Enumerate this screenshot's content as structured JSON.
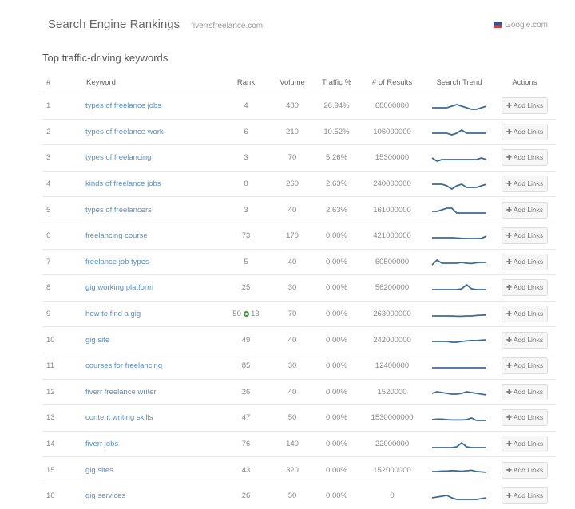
{
  "header": {
    "title": "Search Engine Rankings",
    "domain": "fiverrsfreelance.com",
    "engine": "Google.com",
    "engine_icon": "us-flag-icon"
  },
  "subtitle": "Top traffic-driving keywords",
  "columns": [
    "#",
    "Keyword",
    "Rank",
    "Volume",
    "Traffic %",
    "# of Results",
    "Search Trend",
    "Actions"
  ],
  "action_label": "Add Links",
  "trend_color": "#3d6b99",
  "rows": [
    {
      "n": "1",
      "keyword": "types of freelance jobs",
      "rank": "4",
      "volume": "480",
      "traffic": "26.94%",
      "results": "68000000",
      "trend": [
        5,
        5,
        5,
        5,
        6,
        7,
        6,
        5,
        4,
        4,
        5,
        6
      ]
    },
    {
      "n": "2",
      "keyword": "types of freelance work",
      "rank": "6",
      "volume": "210",
      "traffic": "10.52%",
      "results": "106000000",
      "trend": [
        5,
        5,
        5,
        5,
        4,
        5,
        7,
        5,
        5,
        5,
        5,
        5
      ]
    },
    {
      "n": "3",
      "keyword": "types of freelancing",
      "rank": "3",
      "volume": "70",
      "traffic": "5.26%",
      "results": "15300000",
      "trend": [
        6,
        4,
        5,
        5,
        5,
        5,
        5,
        5,
        5,
        5,
        6,
        5
      ]
    },
    {
      "n": "4",
      "keyword": "kinds of freelance jobs",
      "rank": "8",
      "volume": "260",
      "traffic": "2.63%",
      "results": "240000000",
      "trend": [
        6,
        6,
        6,
        5,
        3,
        5,
        6,
        4,
        4,
        4,
        5,
        6
      ]
    },
    {
      "n": "5",
      "keyword": "types of freelancers",
      "rank": "3",
      "volume": "40",
      "traffic": "2.63%",
      "results": "161000000",
      "trend": [
        5,
        5,
        6,
        7,
        7,
        4,
        4,
        4,
        4,
        4,
        4,
        4
      ]
    },
    {
      "n": "6",
      "keyword": "freelancing course",
      "rank": "73",
      "volume": "170",
      "traffic": "0.00%",
      "results": "421000000",
      "trend": [
        5,
        5,
        5,
        5,
        5,
        4.8,
        4.6,
        4.5,
        4.5,
        4.5,
        4.6,
        6
      ]
    },
    {
      "n": "7",
      "keyword": "freelance job types",
      "rank": "5",
      "volume": "40",
      "traffic": "0.00%",
      "results": "60500000",
      "trend": [
        4,
        7,
        5,
        5,
        5,
        5,
        5.5,
        5,
        4.8,
        5.3,
        5.5,
        5.5
      ]
    },
    {
      "n": "8",
      "keyword": "gig working platform",
      "rank": "25",
      "volume": "30",
      "traffic": "0.00%",
      "results": "56200000",
      "trend": [
        5,
        5,
        5,
        5,
        5,
        5,
        5.5,
        8,
        5.5,
        5,
        5,
        5
      ]
    },
    {
      "n": "9",
      "keyword": "how to find a gig",
      "rank": "50",
      "rank_change": "13",
      "volume": "70",
      "traffic": "0.00%",
      "results": "263000000",
      "trend": [
        5,
        5,
        5,
        5,
        5,
        4.8,
        4.8,
        5,
        5,
        5.3,
        5.5,
        5.6
      ]
    },
    {
      "n": "10",
      "keyword": "gig site",
      "rank": "49",
      "volume": "40",
      "traffic": "0.00%",
      "results": "242000000",
      "trend": [
        5,
        5,
        5,
        5,
        4.5,
        4.5,
        5,
        5.3,
        5.6,
        5.5,
        5.8,
        6
      ]
    },
    {
      "n": "11",
      "keyword": "courses for freelancing",
      "rank": "85",
      "volume": "30",
      "traffic": "0.00%",
      "results": "12400000",
      "trend": [
        5,
        5,
        5,
        5,
        5,
        5,
        5,
        5,
        5,
        5,
        5,
        5
      ]
    },
    {
      "n": "12",
      "keyword": "fiverr freelance writer",
      "rank": "26",
      "volume": "40",
      "traffic": "0.00%",
      "results": "1520000",
      "trend": [
        5,
        6,
        5.5,
        5,
        4.5,
        4.5,
        5,
        6,
        5.5,
        5,
        4.5,
        4
      ]
    },
    {
      "n": "13",
      "keyword": "content writing skills",
      "rank": "47",
      "volume": "50",
      "traffic": "0.00%",
      "results": "1530000000",
      "trend": [
        5,
        5.3,
        5.3,
        5,
        4.8,
        4.8,
        4.8,
        5,
        6,
        4.5,
        4.5,
        4.5
      ]
    },
    {
      "n": "14",
      "keyword": "fiverr jobs",
      "rank": "76",
      "volume": "140",
      "traffic": "0.00%",
      "results": "22000000",
      "trend": [
        4,
        4,
        4,
        4,
        4,
        4.5,
        7,
        4.5,
        4,
        4,
        4,
        4
      ]
    },
    {
      "n": "15",
      "keyword": "gig sites",
      "rank": "43",
      "volume": "320",
      "traffic": "0.00%",
      "results": "152000000",
      "trend": [
        5,
        5,
        5.3,
        5.3,
        5.6,
        5.4,
        5.2,
        5.5,
        5.8,
        5,
        4.8,
        4.5
      ]
    },
    {
      "n": "16",
      "keyword": "gig services",
      "rank": "26",
      "volume": "50",
      "traffic": "0.00%",
      "results": "0",
      "trend": [
        5,
        5.5,
        6,
        6.5,
        5,
        4,
        4,
        4,
        4,
        4,
        4.5,
        5
      ]
    }
  ]
}
